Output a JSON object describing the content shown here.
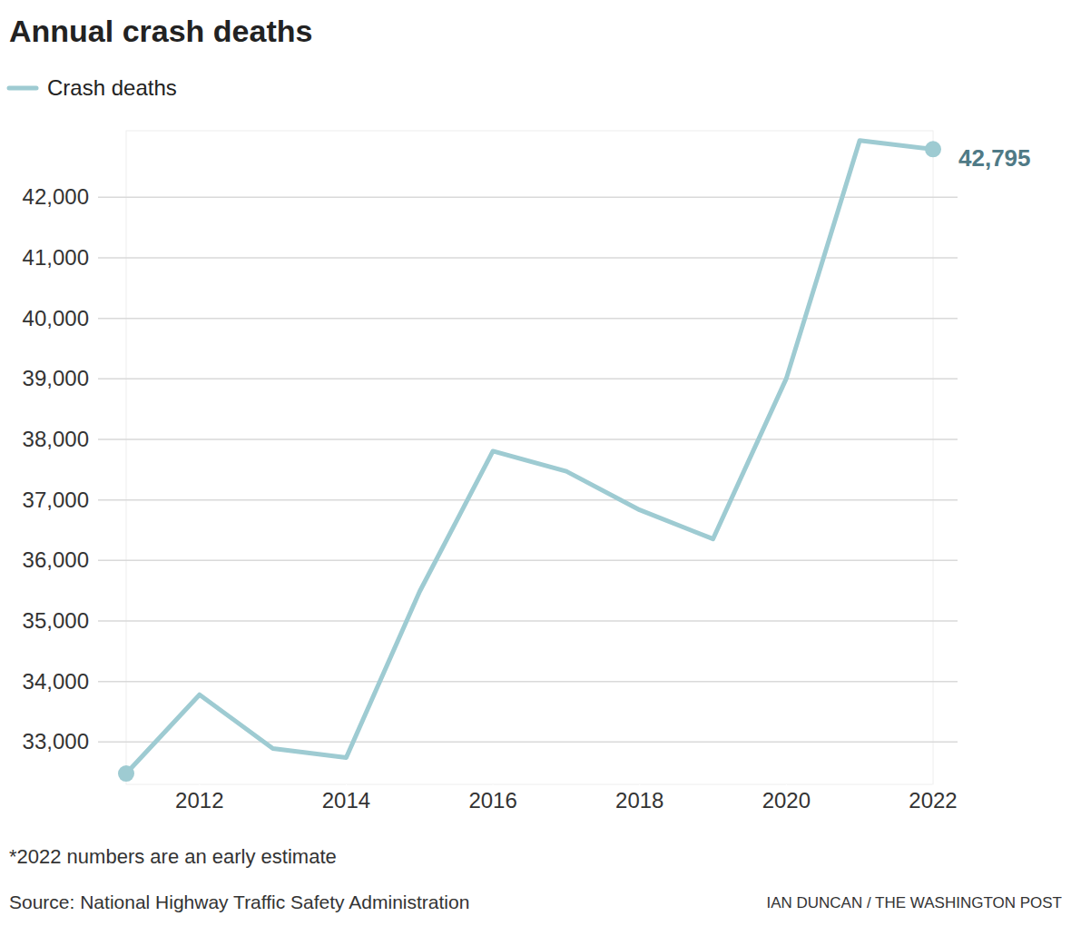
{
  "chart_data": {
    "type": "line",
    "title": "Annual crash deaths",
    "x": [
      2011,
      2012,
      2013,
      2014,
      2015,
      2016,
      2017,
      2018,
      2019,
      2020,
      2021,
      2022
    ],
    "series": [
      {
        "name": "Crash deaths",
        "color": "#9ecbd2",
        "values": [
          32479,
          33782,
          32893,
          32744,
          35484,
          37806,
          37473,
          36835,
          36355,
          39007,
          42939,
          42795
        ]
      }
    ],
    "xlim": [
      2011,
      2022
    ],
    "xticks": [
      2012,
      2014,
      2016,
      2018,
      2020,
      2022
    ],
    "ylim": [
      32300,
      43100
    ],
    "yticks": [
      {
        "value": 33000,
        "label": "33,000"
      },
      {
        "value": 34000,
        "label": "34,000"
      },
      {
        "value": 35000,
        "label": "35,000"
      },
      {
        "value": 36000,
        "label": "36,000"
      },
      {
        "value": 37000,
        "label": "37,000"
      },
      {
        "value": 38000,
        "label": "38,000"
      },
      {
        "value": 39000,
        "label": "39,000"
      },
      {
        "value": 40000,
        "label": "40,000"
      },
      {
        "value": 41000,
        "label": "41,000"
      },
      {
        "value": 42000,
        "label": "42,000"
      }
    ],
    "grid": true,
    "legend": "top-left",
    "marker": "endpoints",
    "annotations": [
      {
        "text": "42,795",
        "x": 2022,
        "y": 42795
      }
    ],
    "note": "*2022 numbers are an early estimate",
    "source": "Source: National Highway Traffic Safety Administration",
    "credit": "IAN DUNCAN / THE WASHINGTON POST"
  }
}
